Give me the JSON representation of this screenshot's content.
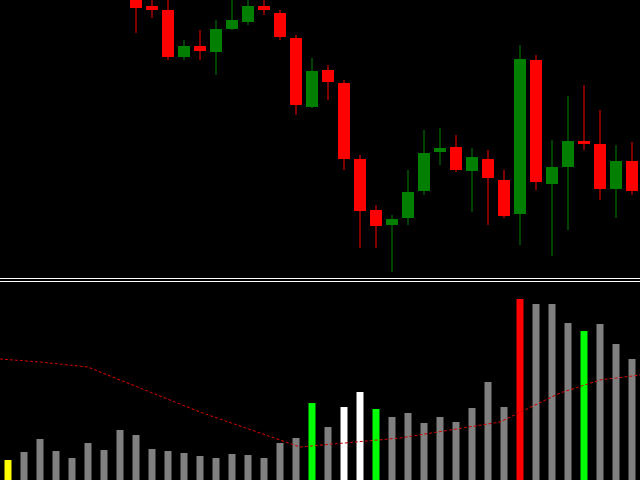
{
  "chart_data": [
    {
      "type": "candlestick",
      "up_color": "#007f00",
      "down_color": "#ff0000",
      "ylim": [
        0,
        280
      ],
      "open": [
        280,
        274,
        270,
        223,
        234,
        228,
        251,
        258,
        274,
        267,
        242,
        173,
        210,
        197,
        121,
        70,
        55,
        62,
        89,
        128,
        133,
        109,
        121,
        100,
        66,
        220,
        96,
        113,
        139,
        136,
        91,
        119
      ],
      "high": [
        280,
        280,
        280,
        240,
        250,
        260,
        280,
        280,
        280,
        270,
        245,
        222,
        215,
        200,
        125,
        75,
        65,
        110,
        150,
        152,
        145,
        132,
        130,
        110,
        235,
        225,
        140,
        184,
        195,
        170,
        135,
        138
      ],
      "low": [
        247,
        262,
        220,
        220,
        220,
        205,
        250,
        255,
        265,
        240,
        165,
        172,
        180,
        110,
        32,
        32,
        8,
        55,
        85,
        115,
        108,
        68,
        55,
        62,
        35,
        90,
        24,
        50,
        130,
        80,
        62,
        85
      ],
      "close": [
        272,
        270,
        223,
        234,
        229,
        251,
        260,
        274,
        270,
        243,
        175,
        209,
        198,
        121,
        69,
        54,
        61,
        88,
        127,
        132,
        110,
        123,
        102,
        64,
        221,
        98,
        113,
        139,
        136,
        91,
        119,
        89
      ]
    },
    {
      "type": "bar",
      "ylim": [
        0,
        198
      ],
      "values": [
        20,
        28,
        41,
        29,
        22,
        37,
        30,
        50,
        45,
        31,
        29,
        27,
        24,
        22,
        26,
        25,
        22,
        37,
        42,
        77,
        53,
        73,
        88,
        71,
        63,
        67,
        57,
        63,
        58,
        72,
        98,
        73,
        181,
        176,
        176,
        157,
        149,
        156,
        136,
        121
      ],
      "colors": [
        "#ffff00",
        "#808080",
        "#808080",
        "#808080",
        "#808080",
        "#808080",
        "#808080",
        "#808080",
        "#808080",
        "#808080",
        "#808080",
        "#808080",
        "#808080",
        "#808080",
        "#808080",
        "#808080",
        "#808080",
        "#808080",
        "#808080",
        "#00ff00",
        "#808080",
        "#ffffff",
        "#ffffff",
        "#00ff00",
        "#808080",
        "#808080",
        "#808080",
        "#808080",
        "#808080",
        "#808080",
        "#808080",
        "#808080",
        "#ff0000",
        "#808080",
        "#808080",
        "#808080",
        "#00ff00",
        "#808080",
        "#808080",
        "#808080"
      ],
      "line": {
        "color": "#cc0000",
        "x": [
          0,
          40,
          88,
          120,
          200,
          280,
          300,
          400,
          500,
          560,
          600,
          640
        ],
        "values": [
          121,
          118,
          113,
          100,
          68,
          40,
          33,
          42,
          58,
          87,
          100,
          105
        ]
      }
    }
  ]
}
